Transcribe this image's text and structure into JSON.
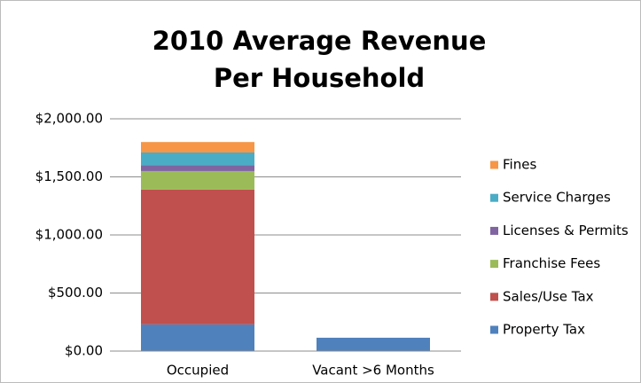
{
  "chart_data": {
    "type": "stacked_bar",
    "title": [
      "2010 Average Revenue",
      "Per Household"
    ],
    "categories": [
      "Occupied",
      "Vacant >6 Months"
    ],
    "series": [
      {
        "name": "Property Tax",
        "color": "#4f81bd",
        "values": [
          230,
          115
        ]
      },
      {
        "name": "Sales/Use Tax",
        "color": "#c0504d",
        "values": [
          1160,
          0
        ]
      },
      {
        "name": "Franchise Fees",
        "color": "#9bbb59",
        "values": [
          160,
          0
        ]
      },
      {
        "name": "Licenses & Permits",
        "color": "#8064a2",
        "values": [
          50,
          0
        ]
      },
      {
        "name": "Service Charges",
        "color": "#4bacc6",
        "values": [
          110,
          0
        ]
      },
      {
        "name": "Fines",
        "color": "#f79646",
        "values": [
          90,
          0
        ]
      }
    ],
    "ylim": [
      0,
      2000
    ],
    "yticks": [
      {
        "value": 0,
        "label": "$0.00"
      },
      {
        "value": 500,
        "label": "$500.00"
      },
      {
        "value": 1000,
        "label": "$1,000.00"
      },
      {
        "value": 1500,
        "label": "$1,500.00"
      },
      {
        "value": 2000,
        "label": "$2,000.00"
      }
    ],
    "grid": true,
    "legend": "right"
  }
}
